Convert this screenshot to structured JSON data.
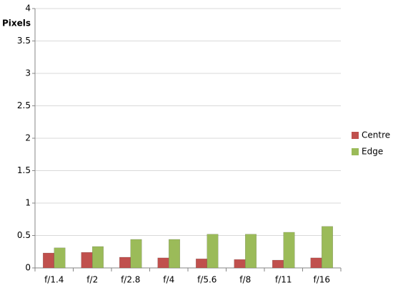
{
  "chart_data": {
    "type": "bar",
    "y_label": "Pixels",
    "categories": [
      "f/1.4",
      "f/2",
      "f/2.8",
      "f/4",
      "f/5.6",
      "f/8",
      "f/11",
      "f/16"
    ],
    "series": [
      {
        "name": "Centre",
        "color": "#c0504d",
        "values": [
          0.23,
          0.24,
          0.165,
          0.155,
          0.14,
          0.13,
          0.12,
          0.155
        ]
      },
      {
        "name": "Edge",
        "color": "#9bbb59",
        "values": [
          0.31,
          0.33,
          0.44,
          0.44,
          0.52,
          0.52,
          0.55,
          0.64
        ]
      }
    ],
    "ylim": [
      0,
      4
    ],
    "yticks": [
      0,
      0.5,
      1,
      1.5,
      2,
      2.5,
      3,
      3.5,
      4
    ],
    "grid": true,
    "legend": "right"
  }
}
